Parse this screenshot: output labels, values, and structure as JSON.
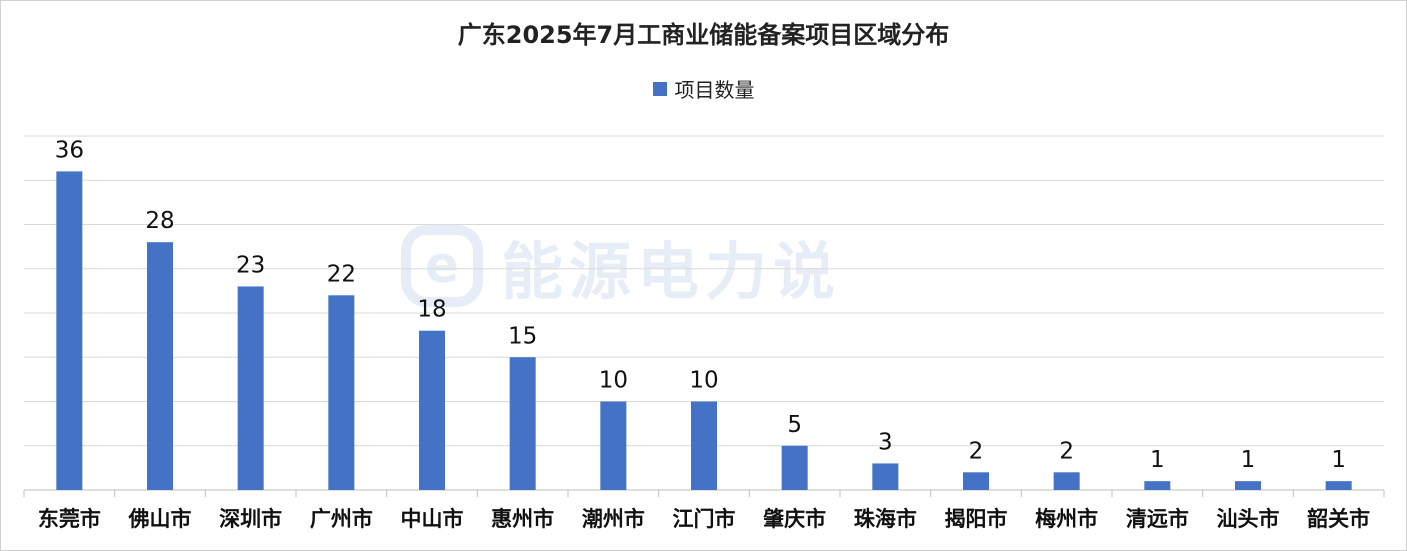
{
  "chart_data": {
    "type": "bar",
    "title": "广东2025年7月工商业储能备案项目区域分布",
    "categories": [
      "东莞市",
      "佛山市",
      "深圳市",
      "广州市",
      "中山市",
      "惠州市",
      "潮州市",
      "江门市",
      "肇庆市",
      "珠海市",
      "揭阳市",
      "梅州市",
      "清远市",
      "汕头市",
      "韶关市"
    ],
    "series": [
      {
        "name": "项目数量",
        "values": [
          36,
          28,
          23,
          22,
          18,
          15,
          10,
          10,
          5,
          3,
          2,
          2,
          1,
          1,
          1
        ]
      }
    ],
    "xlabel": "",
    "ylabel": "",
    "ylim": [
      0,
      40
    ],
    "grid": true,
    "legend": "top-center",
    "data_labels": true,
    "colors": {
      "bar": "#4472C4",
      "grid": "#d9d9d9",
      "axis": "#bfbfbf"
    }
  },
  "watermark": {
    "logo": "e",
    "text": "能源电力说"
  }
}
